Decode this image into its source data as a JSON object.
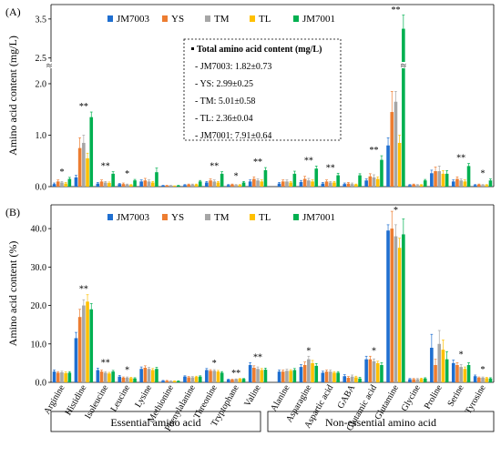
{
  "colors": {
    "JM7003": "#1f6fd0",
    "YS": "#ed7d31",
    "TM": "#a6a6a6",
    "TL": "#ffc000",
    "JM7001": "#00b050",
    "axis": "#000000"
  },
  "groups": {
    "essential": "Essential amino acid",
    "nonessential": "Non-essential amino acid"
  },
  "chart_data": [
    {
      "type": "bar",
      "panel_label": "(A)",
      "ylabel": "Amino acid content (mg/L)",
      "ylim": [
        0,
        3.8
      ],
      "y_axis_break": [
        2.3,
        2.4
      ],
      "yticks": [
        "0.0",
        "1.0",
        "2.0",
        "2.5",
        "3.5"
      ],
      "legend_position": "top-left",
      "categories": [
        "Arginine",
        "Histidine",
        "Isoleucine",
        "Leucine",
        "Lysine",
        "Methionine",
        "Phenylalanine",
        "Threonine",
        "Tryptophane",
        "Valine",
        "Alanine",
        "Asparagine",
        "Aspartic acid",
        "GABA",
        "Glutamic acid",
        "Glutamine",
        "Glycine",
        "Proline",
        "Serine",
        "Tyrosine"
      ],
      "series": [
        {
          "name": "JM7003",
          "values": [
            0.05,
            0.18,
            0.06,
            0.05,
            0.1,
            0.02,
            0.03,
            0.08,
            0.03,
            0.1,
            0.06,
            0.09,
            0.06,
            0.05,
            0.12,
            0.8,
            0.03,
            0.26,
            0.1,
            0.03
          ],
          "errors": [
            0.02,
            0.04,
            0.02,
            0.01,
            0.03,
            0.005,
            0.01,
            0.02,
            0.01,
            0.03,
            0.02,
            0.03,
            0.02,
            0.02,
            0.03,
            0.15,
            0.01,
            0.06,
            0.03,
            0.01
          ]
        },
        {
          "name": "YS",
          "values": [
            0.1,
            0.75,
            0.1,
            0.05,
            0.12,
            0.02,
            0.04,
            0.12,
            0.04,
            0.15,
            0.1,
            0.15,
            0.1,
            0.06,
            0.2,
            1.45,
            0.04,
            0.3,
            0.15,
            0.04
          ],
          "errors": [
            0.03,
            0.2,
            0.03,
            0.02,
            0.04,
            0.005,
            0.01,
            0.03,
            0.01,
            0.04,
            0.03,
            0.05,
            0.03,
            0.02,
            0.05,
            0.4,
            0.01,
            0.08,
            0.04,
            0.01
          ]
        },
        {
          "name": "TM",
          "values": [
            0.08,
            0.85,
            0.08,
            0.04,
            0.1,
            0.02,
            0.04,
            0.1,
            0.03,
            0.12,
            0.1,
            0.12,
            0.08,
            0.05,
            0.18,
            1.65,
            0.03,
            0.3,
            0.12,
            0.03
          ],
          "errors": [
            0.02,
            0.15,
            0.02,
            0.01,
            0.03,
            0.005,
            0.01,
            0.03,
            0.01,
            0.03,
            0.03,
            0.04,
            0.02,
            0.02,
            0.05,
            0.2,
            0.01,
            0.1,
            0.03,
            0.01
          ]
        },
        {
          "name": "TL",
          "values": [
            0.06,
            0.55,
            0.07,
            0.03,
            0.08,
            0.01,
            0.04,
            0.08,
            0.03,
            0.1,
            0.08,
            0.1,
            0.08,
            0.04,
            0.15,
            0.85,
            0.03,
            0.25,
            0.1,
            0.03
          ],
          "errors": [
            0.02,
            0.1,
            0.02,
            0.01,
            0.02,
            0.005,
            0.01,
            0.02,
            0.01,
            0.03,
            0.02,
            0.03,
            0.02,
            0.01,
            0.04,
            0.15,
            0.01,
            0.06,
            0.03,
            0.01
          ]
        },
        {
          "name": "JM7001",
          "values": [
            0.15,
            1.35,
            0.25,
            0.12,
            0.28,
            0.02,
            0.1,
            0.25,
            0.08,
            0.32,
            0.25,
            0.35,
            0.22,
            0.22,
            0.52,
            3.25,
            0.12,
            0.25,
            0.4,
            0.12
          ],
          "errors": [
            0.03,
            0.1,
            0.04,
            0.02,
            0.08,
            0.005,
            0.02,
            0.04,
            0.02,
            0.05,
            0.05,
            0.05,
            0.04,
            0.03,
            0.08,
            0.35,
            0.02,
            0.06,
            0.05,
            0.03
          ]
        }
      ],
      "significance": [
        "*",
        "**",
        "**",
        "*",
        "",
        "",
        "",
        "**",
        "*",
        "**",
        "",
        "**",
        "**",
        "",
        "**",
        "**",
        "",
        "",
        "**",
        "*"
      ],
      "inset": {
        "title": "Total amino acid content (mg/L)",
        "lines": [
          "- JM7003: 1.82±0.73",
          "- YS: 2.99±0.25",
          "- TM: 5.01±0.58",
          "- TL: 2.36±0.04",
          "- JM7001: 7.91±0.64"
        ]
      }
    },
    {
      "type": "bar",
      "panel_label": "(B)",
      "ylabel": "Amino acid content (%)",
      "ylim": [
        0,
        45
      ],
      "yticks": [
        "0.0",
        "10.0",
        "20.0",
        "30.0",
        "40.0"
      ],
      "legend_position": "top-left",
      "categories": [
        "Arginine",
        "Histidine",
        "Isoleucine",
        "Leucine",
        "Lysine",
        "Methionine",
        "Phenylalanine",
        "Threonine",
        "Tryptophane",
        "Valine",
        "Alanine",
        "Asparagine",
        "Aspartic acid",
        "GABA",
        "Glutamic acid",
        "Glutamine",
        "Glycine",
        "Proline",
        "Serine",
        "Tyrosine"
      ],
      "series": [
        {
          "name": "JM7003",
          "values": [
            2.8,
            11.5,
            3.2,
            1.5,
            3.5,
            0.4,
            1.5,
            3.2,
            0.7,
            4.5,
            2.8,
            4.0,
            2.5,
            1.6,
            6.0,
            39.5,
            0.8,
            9.0,
            5.0,
            1.6
          ],
          "errors": [
            0.4,
            1.5,
            0.5,
            0.3,
            0.5,
            0.1,
            0.2,
            0.4,
            0.1,
            0.6,
            0.4,
            0.6,
            0.4,
            0.4,
            0.8,
            1.5,
            0.2,
            3.5,
            0.8,
            0.3
          ]
        },
        {
          "name": "YS",
          "values": [
            2.5,
            17.0,
            2.8,
            1.2,
            3.8,
            0.4,
            1.3,
            3.0,
            0.7,
            3.8,
            2.8,
            4.5,
            2.8,
            1.2,
            6.0,
            40.0,
            0.8,
            4.5,
            4.5,
            1.2
          ],
          "errors": [
            0.3,
            2.0,
            0.4,
            0.2,
            0.5,
            0.1,
            0.2,
            0.3,
            0.1,
            0.5,
            0.4,
            0.8,
            0.4,
            0.3,
            0.8,
            4.5,
            0.2,
            1.5,
            0.6,
            0.2
          ]
        },
        {
          "name": "TM",
          "values": [
            2.6,
            20.0,
            2.5,
            1.2,
            3.5,
            0.3,
            1.3,
            3.0,
            0.8,
            3.5,
            3.0,
            6.0,
            2.8,
            1.5,
            5.5,
            38.0,
            0.8,
            10.0,
            4.0,
            1.2
          ],
          "errors": [
            0.3,
            1.5,
            0.3,
            0.2,
            0.4,
            0.1,
            0.2,
            0.3,
            0.1,
            0.5,
            0.4,
            0.8,
            0.4,
            0.4,
            0.6,
            3.0,
            0.2,
            3.5,
            0.6,
            0.2
          ]
        },
        {
          "name": "TL",
          "values": [
            2.4,
            21.0,
            2.3,
            1.1,
            3.2,
            0.3,
            1.4,
            2.8,
            0.9,
            3.2,
            3.0,
            5.0,
            2.5,
            1.3,
            5.0,
            35.0,
            0.9,
            8.5,
            3.5,
            1.1
          ],
          "errors": [
            0.3,
            1.8,
            0.3,
            0.2,
            0.4,
            0.1,
            0.2,
            0.3,
            0.1,
            0.4,
            0.3,
            0.7,
            0.3,
            0.3,
            0.5,
            2.5,
            0.2,
            2.5,
            0.5,
            0.2
          ]
        },
        {
          "name": "JM7001",
          "values": [
            2.5,
            19.0,
            2.8,
            1.0,
            3.5,
            0.3,
            1.5,
            2.5,
            0.9,
            3.3,
            3.2,
            4.3,
            2.5,
            1.0,
            4.5,
            38.5,
            1.0,
            6.0,
            4.5,
            1.0
          ],
          "errors": [
            0.3,
            1.5,
            0.3,
            0.2,
            0.4,
            0.1,
            0.2,
            0.3,
            0.1,
            0.4,
            0.4,
            0.6,
            0.3,
            0.3,
            0.6,
            4.0,
            0.2,
            2.0,
            0.6,
            0.2
          ]
        }
      ],
      "significance": [
        "",
        "**",
        "**",
        "*",
        "",
        "",
        "",
        "*",
        "**",
        "**",
        "",
        "*",
        "",
        "",
        "*",
        "*",
        "",
        "",
        "*",
        "*"
      ]
    }
  ]
}
